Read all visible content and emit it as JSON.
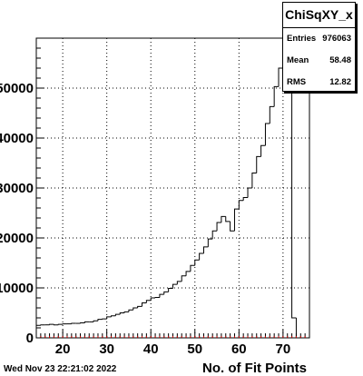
{
  "chart_data": {
    "type": "histogram",
    "xlabel": "No. of Fit Points",
    "ylabel": "",
    "xlim": [
      14,
      76
    ],
    "ylim": [
      0,
      60000
    ],
    "x_ticks": [
      20,
      30,
      40,
      50,
      60,
      70
    ],
    "y_ticks": [
      0,
      10000,
      20000,
      30000,
      40000,
      50000
    ],
    "y_tick_labels": [
      "0",
      "10000",
      "20000",
      "30000",
      "40000",
      "50000"
    ],
    "grid": true,
    "bin_edges": [
      14,
      15,
      16,
      17,
      18,
      19,
      20,
      21,
      22,
      23,
      24,
      25,
      26,
      27,
      28,
      29,
      30,
      31,
      32,
      33,
      34,
      35,
      36,
      37,
      38,
      39,
      40,
      41,
      42,
      43,
      44,
      45,
      46,
      47,
      48,
      49,
      50,
      51,
      52,
      53,
      54,
      55,
      56,
      57,
      58,
      59,
      60,
      61,
      62,
      63,
      64,
      65,
      66,
      67,
      68,
      69,
      70,
      71,
      72,
      73,
      74,
      75
    ],
    "values": [
      2500,
      2600,
      2600,
      2700,
      2600,
      2700,
      2800,
      2800,
      2900,
      2900,
      3000,
      3200,
      3200,
      3400,
      3700,
      3800,
      4200,
      4400,
      4700,
      5000,
      5200,
      5600,
      6000,
      6300,
      7000,
      7500,
      8000,
      8100,
      8700,
      9200,
      9900,
      10700,
      11300,
      12400,
      13300,
      14500,
      15600,
      16900,
      18200,
      19800,
      21400,
      23100,
      24300,
      23300,
      21400,
      25800,
      27500,
      28100,
      30000,
      33000,
      36300,
      38500,
      42900,
      46300,
      50300,
      54000,
      57800,
      60000,
      4000,
      0,
      0
    ],
    "timestamp": "Wed Nov 23 22:21:02 2022",
    "stats": {
      "title": "ChiSqXY_x",
      "entries_label": "Entries",
      "entries": "976063",
      "mean_label": "Mean",
      "mean": "58.48",
      "rms_label": "RMS",
      "rms": "12.82"
    }
  }
}
